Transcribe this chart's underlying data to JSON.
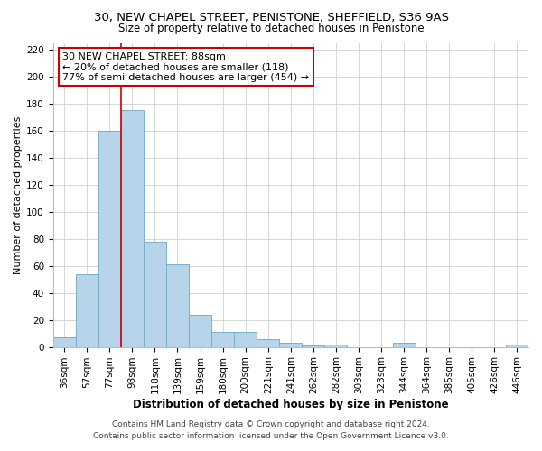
{
  "title": "30, NEW CHAPEL STREET, PENISTONE, SHEFFIELD, S36 9AS",
  "subtitle": "Size of property relative to detached houses in Penistone",
  "xlabel": "Distribution of detached houses by size in Penistone",
  "ylabel": "Number of detached properties",
  "bar_labels": [
    "36sqm",
    "57sqm",
    "77sqm",
    "98sqm",
    "118sqm",
    "139sqm",
    "159sqm",
    "180sqm",
    "200sqm",
    "221sqm",
    "241sqm",
    "262sqm",
    "282sqm",
    "303sqm",
    "323sqm",
    "344sqm",
    "364sqm",
    "385sqm",
    "405sqm",
    "426sqm",
    "446sqm"
  ],
  "bar_values": [
    7,
    54,
    160,
    175,
    78,
    61,
    24,
    11,
    11,
    6,
    3,
    1,
    2,
    0,
    0,
    3,
    0,
    0,
    0,
    0,
    2
  ],
  "bar_color": "#b8d4ea",
  "bar_edge_color": "#7aafc8",
  "vline_x_index": 2.5,
  "vline_color": "#cc0000",
  "ylim": [
    0,
    225
  ],
  "yticks": [
    0,
    20,
    40,
    60,
    80,
    100,
    120,
    140,
    160,
    180,
    200,
    220
  ],
  "annotation_line1": "30 NEW CHAPEL STREET: 88sqm",
  "annotation_line2": "← 20% of detached houses are smaller (118)",
  "annotation_line3": "77% of semi-detached houses are larger (454) →",
  "annotation_box_color": "#ffffff",
  "annotation_box_edge": "#cc0000",
  "footer1": "Contains HM Land Registry data © Crown copyright and database right 2024.",
  "footer2": "Contains public sector information licensed under the Open Government Licence v3.0.",
  "title_fontsize": 9.5,
  "subtitle_fontsize": 8.5,
  "xlabel_fontsize": 8.5,
  "ylabel_fontsize": 8,
  "tick_fontsize": 7.5,
  "annotation_fontsize": 8,
  "footer_fontsize": 6.5,
  "grid_color": "#d0d0d0"
}
